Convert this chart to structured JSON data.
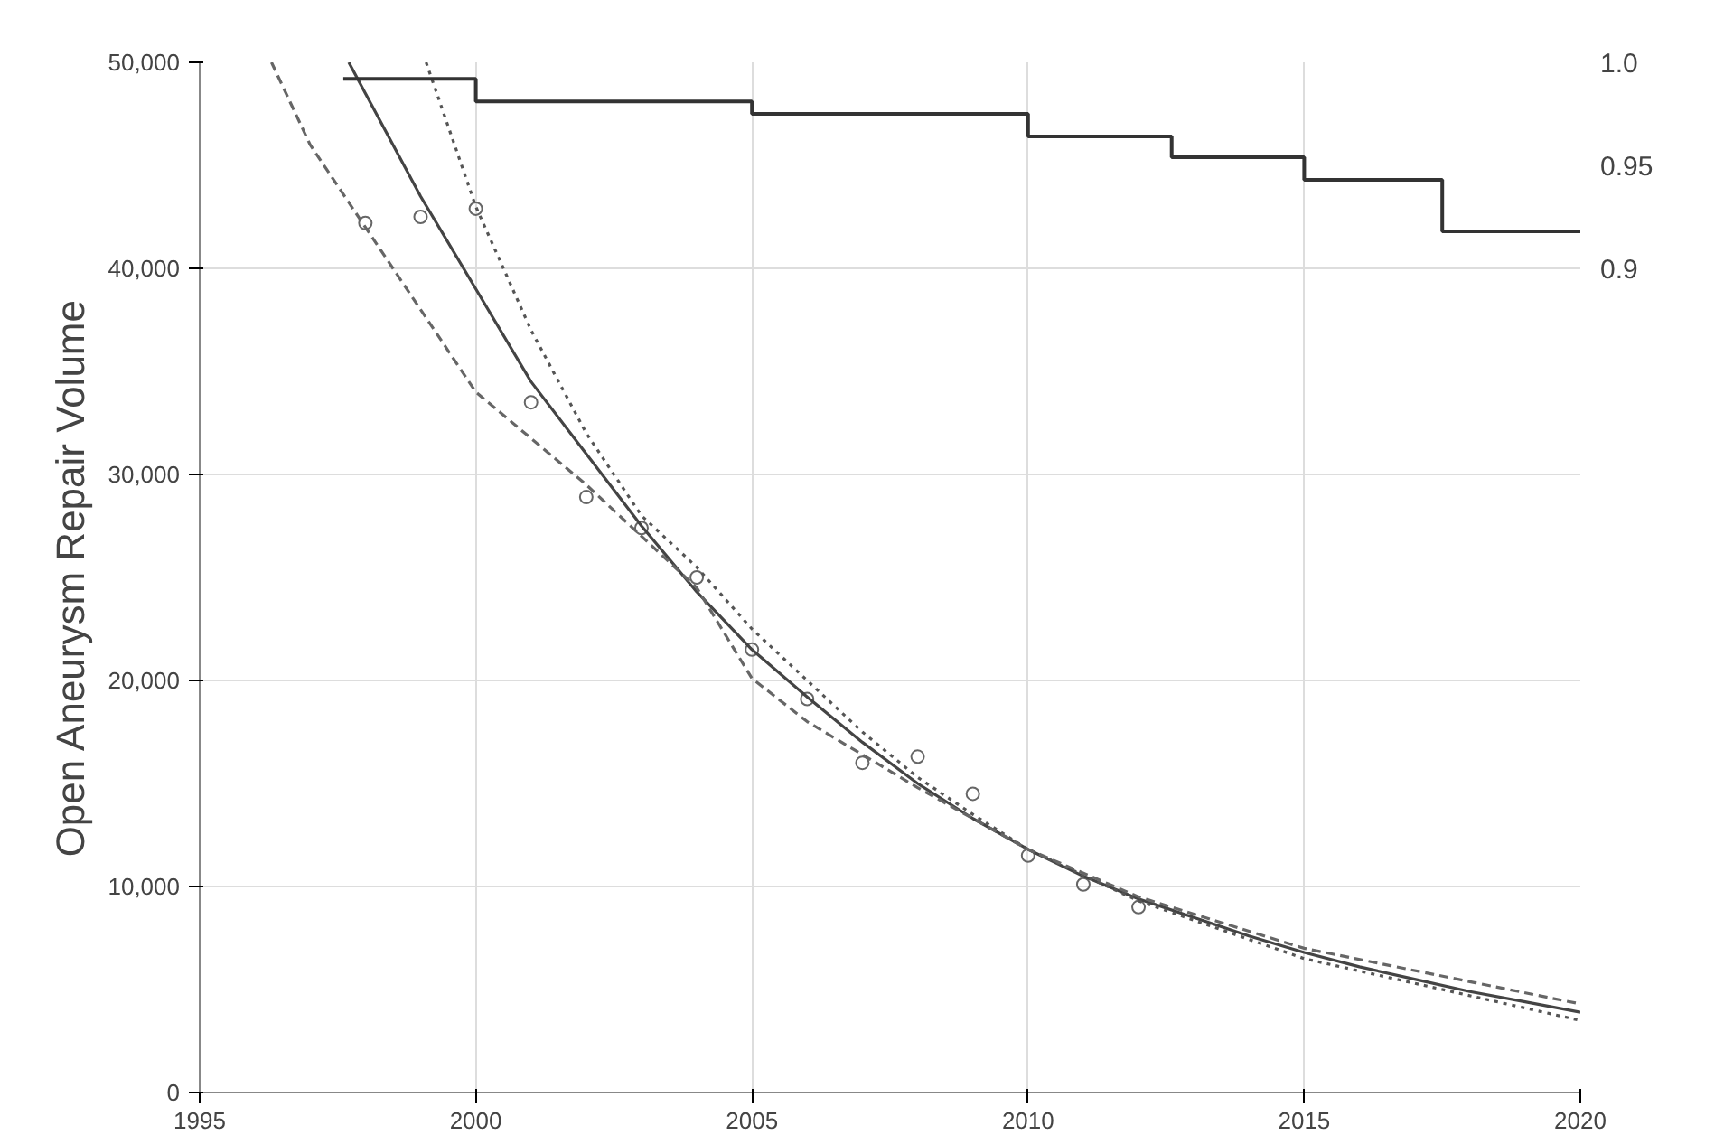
{
  "chart_data": {
    "type": "line",
    "ylabel": "Open Aneurysm Repair Volume",
    "xlim": [
      1995,
      2020
    ],
    "xticks": [
      1995,
      2000,
      2005,
      2010,
      2015,
      2020
    ],
    "ylim": [
      0,
      50000
    ],
    "yticks": [
      0,
      {
        "value": 10000,
        "label": "10,000"
      },
      {
        "value": 20000,
        "label": "20,000"
      },
      {
        "value": 30000,
        "label": "30,000"
      },
      {
        "value": 40000,
        "label": "40,000"
      },
      {
        "value": 50000,
        "label": "50,000"
      }
    ],
    "y2lim": [
      0.5,
      1.0
    ],
    "y2ticks": [
      0.9,
      0.95,
      {
        "value": 1.0,
        "label": "1.0"
      }
    ],
    "grid": true,
    "series": [
      {
        "type": "scatter",
        "marker": "circle",
        "color": "#666666",
        "x": [
          1998,
          1999,
          2000,
          2001,
          2002,
          2003,
          2004,
          2005,
          2006,
          2007,
          2008,
          2009,
          2010,
          2011,
          2012
        ],
        "values": [
          42200,
          42500,
          42900,
          33500,
          28900,
          27400,
          25000,
          21500,
          19100,
          16000,
          16300,
          14500,
          11500,
          10100,
          9000
        ]
      },
      {
        "line_style": "solid",
        "color": "#444444",
        "x": [
          1997.7,
          1998,
          1999,
          2000,
          2001,
          2002,
          2003,
          2004,
          2005,
          2006,
          2007,
          2008,
          2009,
          2010,
          2011,
          2012,
          2013,
          2014,
          2015,
          2016,
          2017,
          2018,
          2019,
          2020
        ],
        "values": [
          50000,
          48500,
          43500,
          39000,
          34500,
          31000,
          27500,
          24300,
          21500,
          19200,
          17000,
          15000,
          13300,
          11800,
          10500,
          9400,
          8500,
          7600,
          6800,
          6100,
          5500,
          4900,
          4400,
          3900
        ]
      },
      {
        "type": "line",
        "line_style": "dotted",
        "color": "#555555",
        "x": [
          1999.1,
          2000,
          2001,
          2002,
          2003,
          2004,
          2005,
          2006,
          2007,
          2008,
          2009,
          2010,
          2012,
          2015,
          2020
        ],
        "values": [
          50000,
          43000,
          37000,
          32000,
          28000,
          25500,
          22500,
          20000,
          17500,
          15300,
          13500,
          11800,
          9300,
          6500,
          3500
        ]
      },
      {
        "type": "line",
        "line_style": "dashed",
        "color": "#666666",
        "x": [
          1996.3,
          1997,
          1998,
          2000,
          2002,
          2004,
          2005,
          2006,
          2008,
          2010,
          2012,
          2015,
          2020
        ],
        "values": [
          50000,
          46000,
          42000,
          34000,
          29500,
          24500,
          20100,
          18000,
          14800,
          11800,
          9500,
          7000,
          4300
        ]
      },
      {
        "type": "step",
        "axis": "y2",
        "line_style": "solid",
        "color": "#333333",
        "x": [
          1997.6,
          2000,
          2005,
          2010,
          2012.6,
          2015,
          2017.5,
          2020
        ],
        "values": [
          0.992,
          0.981,
          0.975,
          0.964,
          0.954,
          0.943,
          0.918,
          0.918
        ]
      }
    ]
  }
}
